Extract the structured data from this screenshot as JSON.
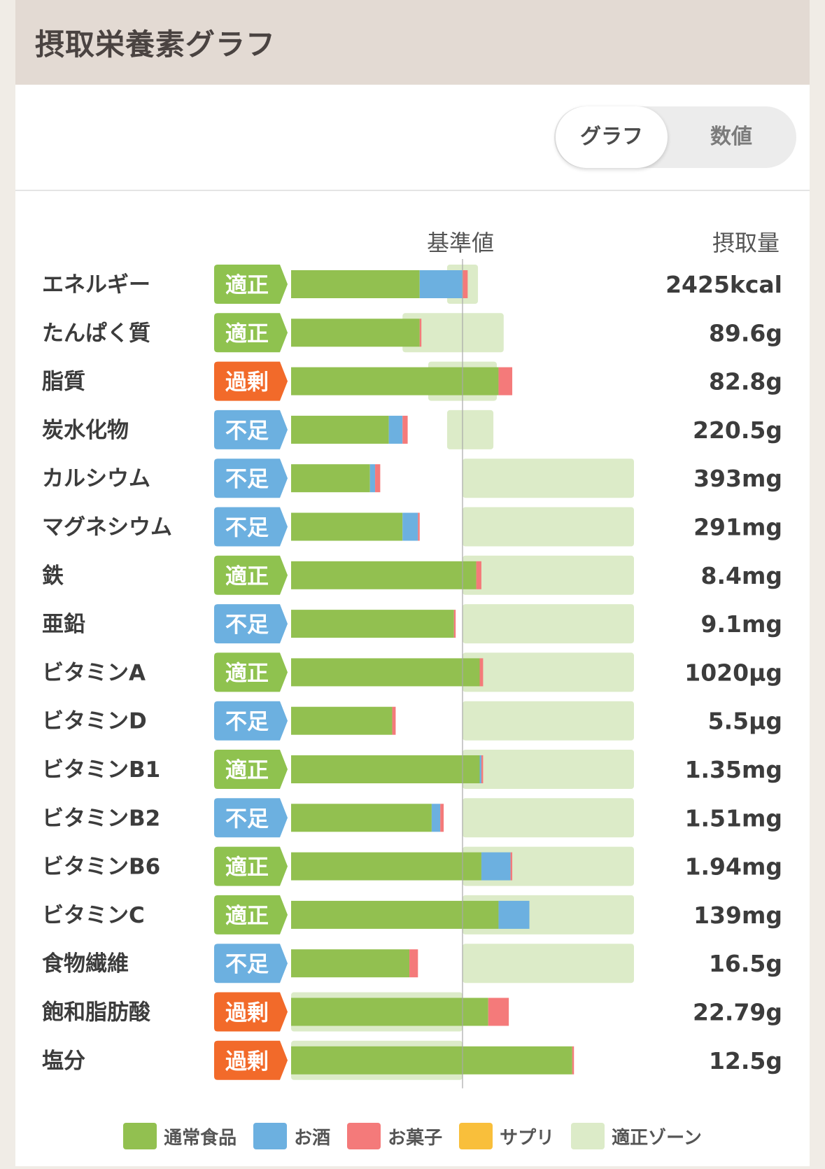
{
  "header": {
    "title": "摂取栄養素グラフ"
  },
  "toggle": {
    "graph_label": "グラフ",
    "number_label": "数値"
  },
  "columns": {
    "reference": "基準値",
    "intake": "摂取量"
  },
  "colors": {
    "normal": "#92c050",
    "alcohol": "#6cb0e0",
    "sweets": "#f47a7a",
    "supplement": "#f9bf3b",
    "zone": "#dcebc8",
    "badge_ok": "#8fc24f",
    "badge_low": "#6cb0e0",
    "badge_over": "#f26a2a"
  },
  "statuses": {
    "ok": "適正",
    "low": "不足",
    "over": "過剰"
  },
  "chart_data": {
    "type": "bar",
    "stacked": true,
    "orientation": "horizontal",
    "note": "Values are percent of reference value (基準値 = 100)",
    "reference_value": 100,
    "series": [
      {
        "name": "通常食品",
        "key": "normal"
      },
      {
        "name": "お酒",
        "key": "alcohol"
      },
      {
        "name": "お菓子",
        "key": "sweets"
      },
      {
        "name": "サプリ",
        "key": "supplement"
      },
      {
        "name": "適正ゾーン",
        "key": "zone"
      }
    ],
    "rows": [
      {
        "label": "エネルギー",
        "status": "ok",
        "amount": "2425kcal",
        "normal": 75,
        "alcohol": 25,
        "sweets": 3,
        "supplement": 0,
        "zone": [
          91,
          109
        ]
      },
      {
        "label": "たんぱく質",
        "status": "ok",
        "amount": "89.6g",
        "normal": 75,
        "alcohol": 0,
        "sweets": 1,
        "supplement": 0,
        "zone": [
          65,
          124
        ]
      },
      {
        "label": "脂質",
        "status": "over",
        "amount": "82.8g",
        "normal": 121,
        "alcohol": 0,
        "sweets": 8,
        "supplement": 0,
        "zone": [
          80,
          120
        ]
      },
      {
        "label": "炭水化物",
        "status": "low",
        "amount": "220.5g",
        "normal": 57,
        "alcohol": 8,
        "sweets": 3,
        "supplement": 0,
        "zone": [
          91,
          118
        ]
      },
      {
        "label": "カルシウム",
        "status": "low",
        "amount": "393mg",
        "normal": 46,
        "alcohol": 3,
        "sweets": 3,
        "supplement": 0,
        "zone": [
          100,
          200
        ]
      },
      {
        "label": "マグネシウム",
        "status": "low",
        "amount": "291mg",
        "normal": 65,
        "alcohol": 9,
        "sweets": 1,
        "supplement": 0,
        "zone": [
          100,
          200
        ]
      },
      {
        "label": "鉄",
        "status": "ok",
        "amount": "8.4mg",
        "normal": 108,
        "alcohol": 0,
        "sweets": 3,
        "supplement": 0,
        "zone": [
          100,
          200
        ]
      },
      {
        "label": "亜鉛",
        "status": "low",
        "amount": "9.1mg",
        "normal": 95,
        "alcohol": 0,
        "sweets": 1,
        "supplement": 0,
        "zone": [
          100,
          200
        ]
      },
      {
        "label": "ビタミンA",
        "status": "ok",
        "amount": "1020µg",
        "normal": 110,
        "alcohol": 0,
        "sweets": 2,
        "supplement": 0,
        "zone": [
          100,
          200
        ]
      },
      {
        "label": "ビタミンD",
        "status": "low",
        "amount": "5.5µg",
        "normal": 59,
        "alcohol": 0,
        "sweets": 2,
        "supplement": 0,
        "zone": [
          100,
          200
        ]
      },
      {
        "label": "ビタミンB1",
        "status": "ok",
        "amount": "1.35mg",
        "normal": 110,
        "alcohol": 1,
        "sweets": 1,
        "supplement": 0,
        "zone": [
          100,
          200
        ]
      },
      {
        "label": "ビタミンB2",
        "status": "low",
        "amount": "1.51mg",
        "normal": 82,
        "alcohol": 5,
        "sweets": 2,
        "supplement": 0,
        "zone": [
          100,
          200
        ]
      },
      {
        "label": "ビタミンB6",
        "status": "ok",
        "amount": "1.94mg",
        "normal": 111,
        "alcohol": 17,
        "sweets": 1,
        "supplement": 0,
        "zone": [
          100,
          200
        ]
      },
      {
        "label": "ビタミンC",
        "status": "ok",
        "amount": "139mg",
        "normal": 121,
        "alcohol": 18,
        "sweets": 0,
        "supplement": 0,
        "zone": [
          100,
          200
        ]
      },
      {
        "label": "食物繊維",
        "status": "low",
        "amount": "16.5g",
        "normal": 69,
        "alcohol": 0,
        "sweets": 5,
        "supplement": 0,
        "zone": [
          100,
          200
        ]
      },
      {
        "label": "飽和脂肪酸",
        "status": "over",
        "amount": "22.79g",
        "normal": 115,
        "alcohol": 0,
        "sweets": 12,
        "supplement": 0,
        "zone": [
          0,
          100
        ]
      },
      {
        "label": "塩分",
        "status": "over",
        "amount": "12.5g",
        "normal": 164,
        "alcohol": 0,
        "sweets": 1,
        "supplement": 0,
        "zone": [
          0,
          100
        ]
      }
    ]
  },
  "legend": [
    {
      "label": "通常食品",
      "color_key": "normal"
    },
    {
      "label": "お酒",
      "color_key": "alcohol"
    },
    {
      "label": "お菓子",
      "color_key": "sweets"
    },
    {
      "label": "サプリ",
      "color_key": "supplement"
    },
    {
      "label": "適正ゾーン",
      "color_key": "zone"
    }
  ]
}
